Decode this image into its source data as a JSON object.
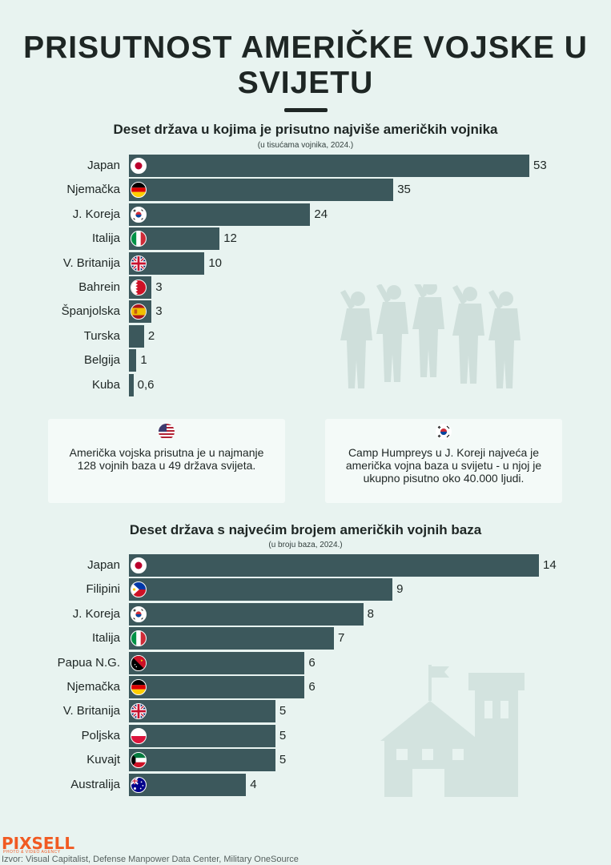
{
  "title": "PRISUTNOST AMERIČKE VOJSKE U SVIJETU",
  "chart_data": [
    {
      "type": "bar",
      "orientation": "horizontal",
      "title": "Deset država u kojima je prisutno najviše američkih vojnika",
      "subtitle": "(u tisućama vojnika, 2024.)",
      "categories": [
        "Japan",
        "Njemačka",
        "J. Koreja",
        "Italija",
        "V. Britanija",
        "Bahrein",
        "Španjolska",
        "Turska",
        "Belgija",
        "Kuba"
      ],
      "values": [
        53,
        35,
        24,
        12,
        10,
        3,
        3,
        2,
        1,
        0.6
      ],
      "value_labels": [
        "53",
        "35",
        "24",
        "12",
        "10",
        "3",
        "3",
        "2",
        "1",
        "0,6"
      ],
      "flags": [
        "jp",
        "de",
        "kr",
        "it",
        "gb",
        "bh",
        "es",
        "",
        "",
        ""
      ],
      "xlim": [
        0,
        53
      ]
    },
    {
      "type": "bar",
      "orientation": "horizontal",
      "title": "Deset država s najvećim brojem američkih vojnih baza",
      "subtitle": "(u broju baza, 2024.)",
      "categories": [
        "Japan",
        "Filipini",
        "J. Koreja",
        "Italija",
        "Papua N.G.",
        "Njemačka",
        "V. Britanija",
        "Poljska",
        "Kuvajt",
        "Australija"
      ],
      "values": [
        14,
        9,
        8,
        7,
        6,
        6,
        5,
        5,
        5,
        4
      ],
      "value_labels": [
        "14",
        "9",
        "8",
        "7",
        "6",
        "6",
        "5",
        "5",
        "5",
        "4"
      ],
      "flags": [
        "jp",
        "ph",
        "kr",
        "it",
        "pg",
        "de",
        "gb",
        "pl",
        "kw",
        "au"
      ],
      "xlim": [
        0,
        14
      ]
    }
  ],
  "cards": {
    "left": {
      "text": "Američka vojska prisutna je u najmanje 128 vojnih baza u 49 država svijeta.",
      "flag": "us"
    },
    "right": {
      "text": "Camp Humpreys u J. Koreji najveća je američka vojna baza u svijetu - u njoj je ukupno pisutno oko 40.000 ljudi.",
      "flag": "kr"
    }
  },
  "brand": {
    "name": "PIXSELL",
    "tagline": "PHOTO & VIDEO AGENCY"
  },
  "source": "Izvor: Visual Capitalist, Defense Manpower Data Center, Military OneSource",
  "colors": {
    "background": "#e8f3f0",
    "bar": "#3c585c",
    "brand": "#f15a22"
  }
}
